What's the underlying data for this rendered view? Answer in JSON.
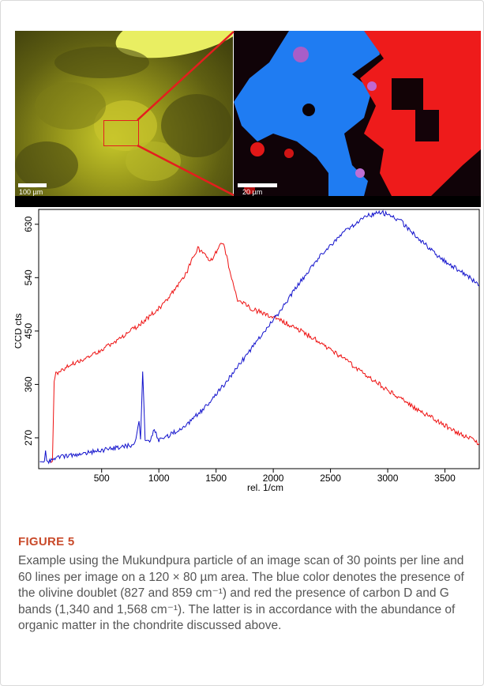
{
  "figure": {
    "photo_scale": "100 µm",
    "map_scale": "20 µm"
  },
  "chart_data": {
    "type": "line",
    "xlabel": "rel. 1/cm",
    "ylabel": "CCD cts",
    "xlim": [
      -50,
      3800
    ],
    "ylim": [
      218,
      655
    ],
    "x_ticks": [
      500,
      1000,
      1500,
      2000,
      2500,
      3000,
      3500
    ],
    "y_ticks": [
      270,
      360,
      450,
      540,
      630
    ],
    "grid": false,
    "series": [
      {
        "color": "#ee1111",
        "x": [
          50,
          70,
          85,
          100,
          200,
          400,
          600,
          800,
          1000,
          1150,
          1250,
          1300,
          1340,
          1400,
          1450,
          1480,
          1520,
          1568,
          1610,
          1680,
          1800,
          2000,
          2200,
          2400,
          2600,
          2800,
          3000,
          3200,
          3400,
          3600,
          3800
        ],
        "values": [
          229,
          230,
          365,
          378,
          390,
          408,
          430,
          456,
          488,
          522,
          552,
          575,
          590,
          580,
          568,
          575,
          592,
          598,
          560,
          505,
          488,
          474,
          455,
          432,
          405,
          378,
          350,
          325,
          302,
          280,
          261
        ]
      },
      {
        "color": "#1111cc",
        "x": [
          -40,
          0,
          10,
          20,
          30,
          60,
          100,
          200,
          400,
          600,
          780,
          800,
          827,
          840,
          859,
          880,
          920,
          960,
          1000,
          1200,
          1400,
          1600,
          1800,
          2000,
          2200,
          2400,
          2600,
          2800,
          2950,
          3100,
          3300,
          3500,
          3700,
          3800
        ],
        "values": [
          230,
          230,
          249,
          232,
          230,
          231,
          237,
          240,
          246,
          252,
          258,
          268,
          299,
          268,
          381,
          268,
          265,
          283,
          266,
          285,
          320,
          367,
          418,
          468,
          523,
          575,
          615,
          643,
          650,
          638,
          600,
          567,
          543,
          526
        ]
      }
    ]
  },
  "caption": {
    "label": "FIGURE 5",
    "text": "Example using the Mukundpura particle of an image scan of 30 points per line and 60 lines per image on a 120 × 80 µm area. The blue color denotes the presence of the olivine doublet (827 and 859 cm⁻¹) and red the presence of carbon D and G bands (1,340 and 1,568 cm⁻¹). The latter is in accordance with the abundance of organic matter in the chondrite discussed above."
  }
}
